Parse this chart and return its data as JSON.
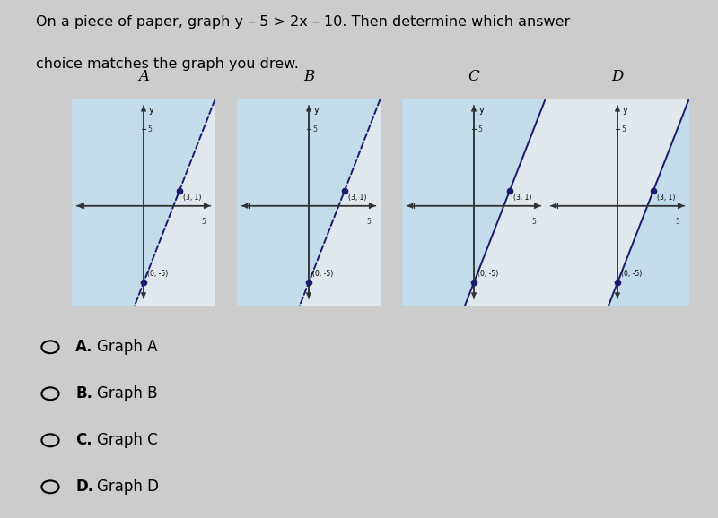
{
  "question_line1": "On a piece of paper, graph y – 5 > 2x – 10. Then determine which answer",
  "question_line2": "choice matches the graph you drew.",
  "graph_labels": [
    "A",
    "B",
    "C",
    "D"
  ],
  "point1": [
    0,
    -5
  ],
  "point2": [
    3,
    1
  ],
  "point1_label": "(0, -5)",
  "point2_label": "(3, 1)",
  "xlim": [
    -6,
    6
  ],
  "ylim": [
    -6.5,
    7
  ],
  "line_color": "#1a1a6e",
  "shade_color": "#b8d8e8",
  "shade_alpha": 0.7,
  "dot_color": "#1a1a6e",
  "bg_color": "#cccccc",
  "axes_color": "#333333",
  "graph_configs": [
    {
      "label": "A",
      "dashed": true,
      "shade": "upper_left"
    },
    {
      "label": "B",
      "dashed": true,
      "shade": "upper_left"
    },
    {
      "label": "C",
      "dashed": false,
      "shade": "upper_left"
    },
    {
      "label": "D",
      "dashed": false,
      "shade": "lower_right"
    }
  ],
  "choice_labels": [
    "A",
    "B",
    "C",
    "D"
  ],
  "choice_texts": [
    "Graph A",
    "Graph B",
    "Graph C",
    "Graph D"
  ],
  "fig_width": 8.0,
  "fig_height": 5.78,
  "dpi": 100
}
